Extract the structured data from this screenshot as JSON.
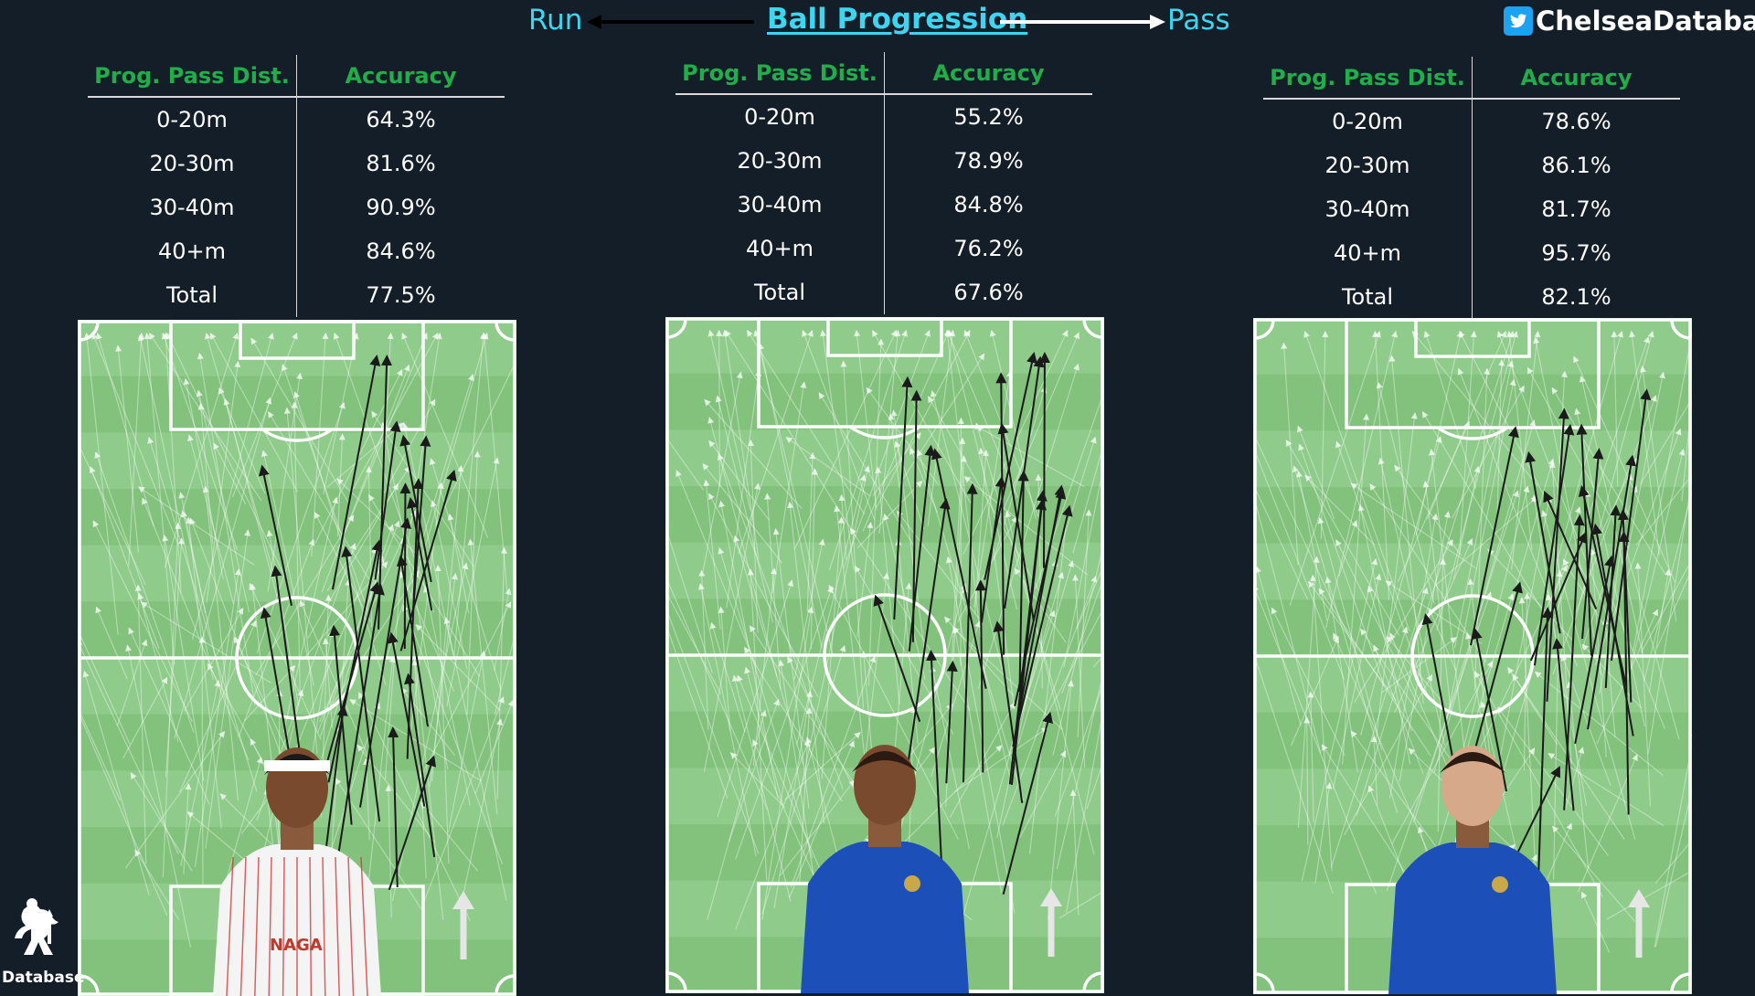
{
  "header": {
    "run_label": "Run",
    "title": "Ball Progression",
    "pass_label": "Pass",
    "brand": "ChelseaDatabase",
    "brand_icon": "twitter-bird-icon",
    "accent_color": "#3dd6f2"
  },
  "logo": {
    "label": "Database",
    "icon": "lion-crest-icon"
  },
  "colors": {
    "background": "#141e28",
    "table_header": "#1fae4a",
    "pitch_light": "#8fcb8a",
    "pitch_dark": "#82c27c",
    "run_arrow": "#1a1a1a",
    "pass_arrow": "#ffffff"
  },
  "table_headers": [
    "Prog. Pass Dist.",
    "Accuracy"
  ],
  "panels": [
    {
      "player_photo": "player-sevilla-kit",
      "kit": "white-red-stripes",
      "sponsor": "NAGA",
      "rows": [
        {
          "dist": "0-20m",
          "acc": "64.3%"
        },
        {
          "dist": "20-30m",
          "acc": "81.6%"
        },
        {
          "dist": "30-40m",
          "acc": "90.9%"
        },
        {
          "dist": "40+m",
          "acc": "84.6%"
        },
        {
          "dist": "Total",
          "acc": "77.5%"
        }
      ]
    },
    {
      "player_photo": "player-chelsea-kit",
      "kit": "chelsea-blue",
      "rows": [
        {
          "dist": "0-20m",
          "acc": "55.2%"
        },
        {
          "dist": "20-30m",
          "acc": "78.9%"
        },
        {
          "dist": "30-40m",
          "acc": "84.8%"
        },
        {
          "dist": "40+m",
          "acc": "76.2%"
        },
        {
          "dist": "Total",
          "acc": "67.6%"
        }
      ]
    },
    {
      "player_photo": "player-chelsea-kit",
      "kit": "chelsea-blue",
      "rows": [
        {
          "dist": "0-20m",
          "acc": "78.6%"
        },
        {
          "dist": "20-30m",
          "acc": "86.1%"
        },
        {
          "dist": "30-40m",
          "acc": "81.7%"
        },
        {
          "dist": "40+m",
          "acc": "95.7%"
        },
        {
          "dist": "Total",
          "acc": "82.1%"
        }
      ]
    }
  ],
  "chart_data": {
    "type": "table",
    "columns": [
      "Prog. Pass Dist.",
      "Accuracy"
    ],
    "tables": [
      [
        [
          "0-20m",
          "64.3%"
        ],
        [
          "20-30m",
          "81.6%"
        ],
        [
          "30-40m",
          "90.9%"
        ],
        [
          "40+m",
          "84.6%"
        ],
        [
          "Total",
          "77.5%"
        ]
      ],
      [
        [
          "0-20m",
          "55.2%"
        ],
        [
          "20-30m",
          "78.9%"
        ],
        [
          "30-40m",
          "84.8%"
        ],
        [
          "40+m",
          "76.2%"
        ],
        [
          "Total",
          "67.6%"
        ]
      ],
      [
        [
          "0-20m",
          "78.6%"
        ],
        [
          "20-30m",
          "86.1%"
        ],
        [
          "30-40m",
          "81.7%"
        ],
        [
          "40+m",
          "95.7%"
        ],
        [
          "Total",
          "82.1%"
        ]
      ]
    ]
  }
}
